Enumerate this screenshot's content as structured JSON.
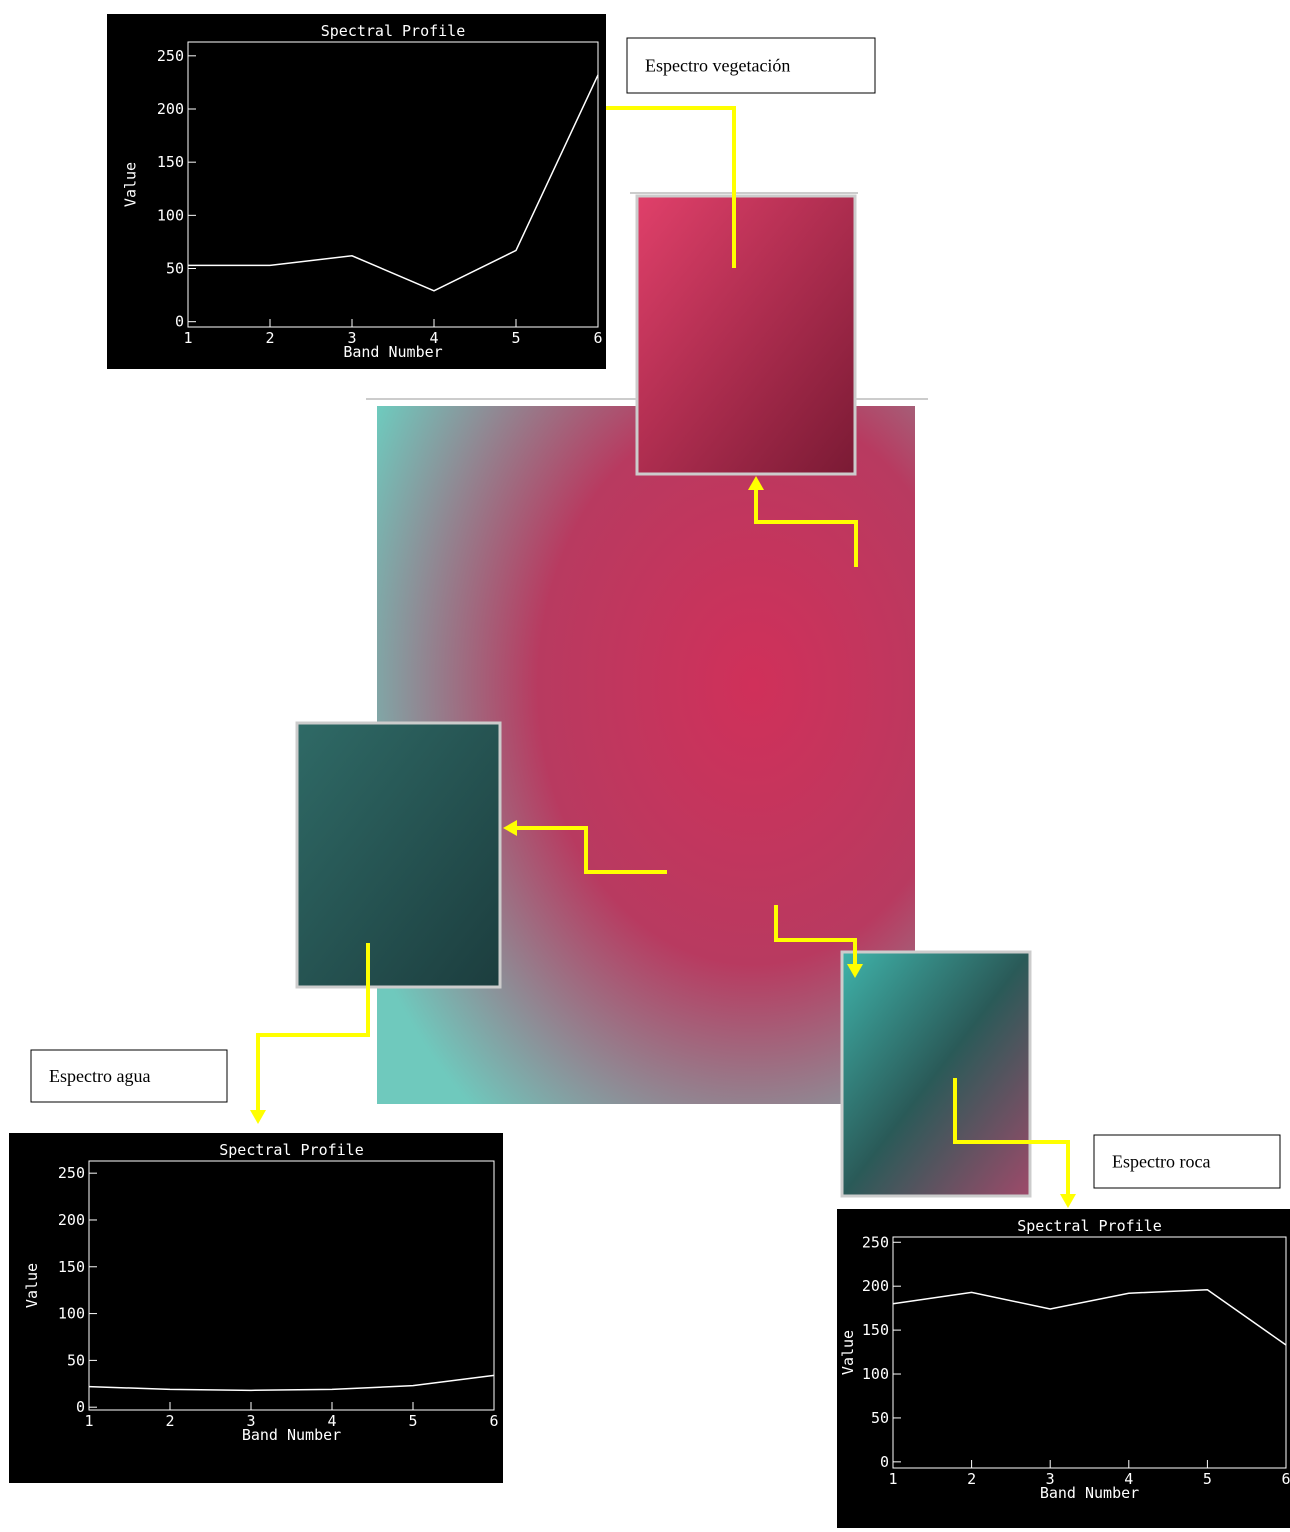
{
  "chart_data": [
    {
      "type": "line",
      "title": "Spectral Profile",
      "x_label": "Band Number",
      "y_label": "Value",
      "annotation": "Espectro vegetación",
      "x": [
        1,
        2,
        3,
        4,
        5,
        6
      ],
      "series": [
        {
          "color": "#ffffff",
          "values": [
            53,
            53,
            62,
            29,
            67,
            232
          ]
        }
      ],
      "xlim": [
        1,
        6
      ],
      "xticks": [
        1,
        2,
        3,
        4,
        5,
        6
      ],
      "ylim": [
        -5,
        263
      ],
      "yticks": [
        0,
        50,
        100,
        150,
        200,
        250
      ]
    },
    {
      "type": "line",
      "title": "Spectral Profile",
      "x_label": "Band Number",
      "y_label": "Value",
      "annotation": "Espectro agua",
      "x": [
        1,
        2,
        3,
        4,
        5,
        6
      ],
      "series": [
        {
          "color": "#ffffff",
          "values": [
            22,
            19,
            18,
            19,
            23,
            34
          ]
        }
      ],
      "xlim": [
        1,
        6
      ],
      "xticks": [
        1,
        2,
        3,
        4,
        5,
        6
      ],
      "ylim": [
        -3,
        263
      ],
      "yticks": [
        0,
        50,
        100,
        150,
        200,
        250
      ]
    },
    {
      "type": "line",
      "title": "Spectral Profile",
      "x_label": "Band Number",
      "y_label": "Value",
      "annotation": "Espectro roca",
      "x": [
        1,
        2,
        3,
        4,
        5,
        6
      ],
      "series": [
        {
          "color": "#ffffff",
          "values": [
            180,
            193,
            174,
            192,
            196,
            133
          ]
        }
      ],
      "xlim": [
        1,
        6
      ],
      "xticks": [
        1,
        2,
        3,
        4,
        5,
        6
      ],
      "ylim": [
        -7,
        256
      ],
      "yticks": [
        0,
        50,
        100,
        150,
        200,
        250
      ]
    }
  ]
}
